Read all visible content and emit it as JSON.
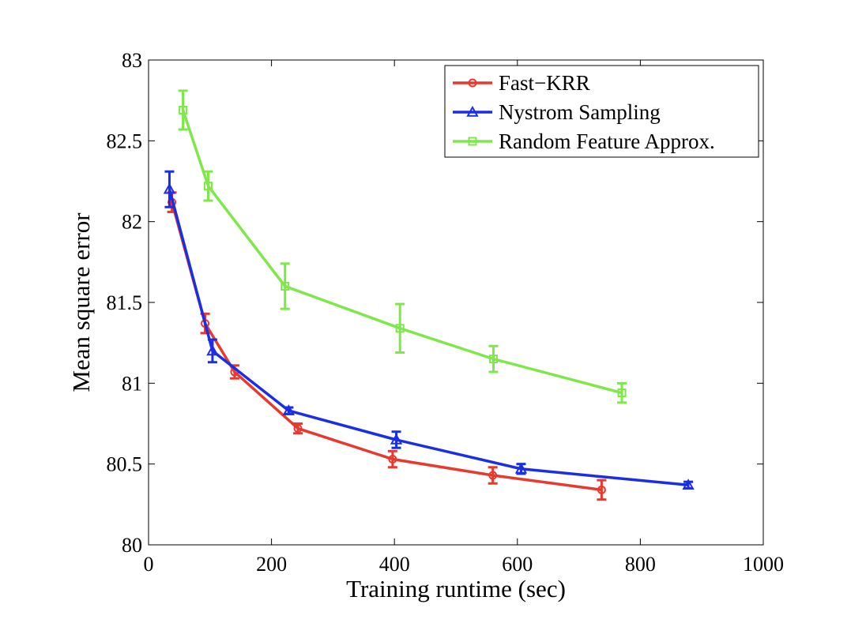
{
  "chart_data": {
    "type": "line",
    "title": "",
    "xlabel": "Training runtime (sec)",
    "ylabel": "Mean square error",
    "xlim": [
      0,
      1000
    ],
    "ylim": [
      80,
      83
    ],
    "xticks": [
      0,
      200,
      400,
      600,
      800,
      1000
    ],
    "xtick_labels": [
      "0",
      "200",
      "400",
      "600",
      "800",
      "1000"
    ],
    "yticks": [
      80,
      80.5,
      81,
      81.5,
      82,
      82.5,
      83
    ],
    "ytick_labels": [
      "80",
      "80.5",
      "81",
      "81.5",
      "82",
      "82.5",
      "83"
    ],
    "grid": false,
    "legend_position": "top-right",
    "series": [
      {
        "name": "Fast−KRR",
        "color": "#e8392e",
        "marker": "circle",
        "x": [
          38,
          92,
          140,
          243,
          397,
          560,
          737
        ],
        "y": [
          82.12,
          81.37,
          81.07,
          80.72,
          80.53,
          80.43,
          80.34
        ],
        "err": [
          0.06,
          0.06,
          0.04,
          0.03,
          0.05,
          0.05,
          0.06
        ]
      },
      {
        "name": "Nystrom Sampling",
        "color": "#1a2ee6",
        "marker": "triangle",
        "x": [
          34,
          104,
          228,
          403,
          606,
          878
        ],
        "y": [
          82.2,
          81.2,
          80.83,
          80.65,
          80.47,
          80.37
        ],
        "err": [
          0.11,
          0.07,
          0.02,
          0.05,
          0.03,
          0.02
        ]
      },
      {
        "name": "Random Feature Approx.",
        "color": "#7ee84a",
        "marker": "square",
        "x": [
          56,
          97,
          222,
          409,
          561,
          770
        ],
        "y": [
          82.69,
          82.22,
          81.6,
          81.34,
          81.15,
          80.94
        ],
        "err": [
          0.12,
          0.09,
          0.14,
          0.15,
          0.08,
          0.06
        ]
      }
    ]
  }
}
